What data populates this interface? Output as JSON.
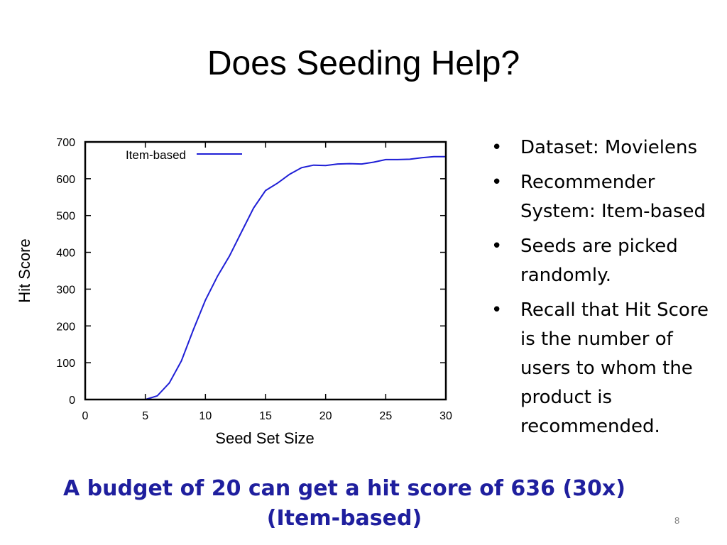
{
  "slide": {
    "title": "Does Seeding Help?",
    "bullets": [
      {
        "text": "Dataset: Movielens"
      },
      {
        "text": "Recommender System: Item-based"
      },
      {
        "text": "Seeds are picked randomly."
      },
      {
        "text": "Recall that Hit Score is the number of users to whom the product is recommended."
      }
    ],
    "bullet_symbol": "•",
    "caption": "A budget of 20 can get a hit score of 636 (30x) (Item-based)",
    "page_number": "8"
  },
  "colors": {
    "line": "#1f1fd6",
    "caption": "#1f1f9e",
    "axis": "#000000"
  },
  "chart_data": {
    "type": "line",
    "xlabel": "Seed Set Size",
    "ylabel": "Hit Score",
    "xlim": [
      0,
      30
    ],
    "ylim": [
      0,
      700
    ],
    "xticks": [
      0,
      5,
      10,
      15,
      20,
      25,
      30
    ],
    "yticks": [
      0,
      100,
      200,
      300,
      400,
      500,
      600,
      700
    ],
    "legend_position": "top-left",
    "grid": false,
    "series": [
      {
        "name": "Item-based",
        "x": [
          5,
          6,
          7,
          8,
          9,
          10,
          11,
          12,
          13,
          14,
          15,
          16,
          17,
          18,
          19,
          20,
          21,
          22,
          23,
          24,
          25,
          26,
          27,
          28,
          29,
          30
        ],
        "y": [
          0,
          10,
          45,
          105,
          190,
          270,
          335,
          390,
          455,
          520,
          568,
          588,
          612,
          630,
          637,
          636,
          640,
          641,
          640,
          645,
          652,
          652,
          653,
          657,
          660,
          660
        ]
      }
    ]
  }
}
